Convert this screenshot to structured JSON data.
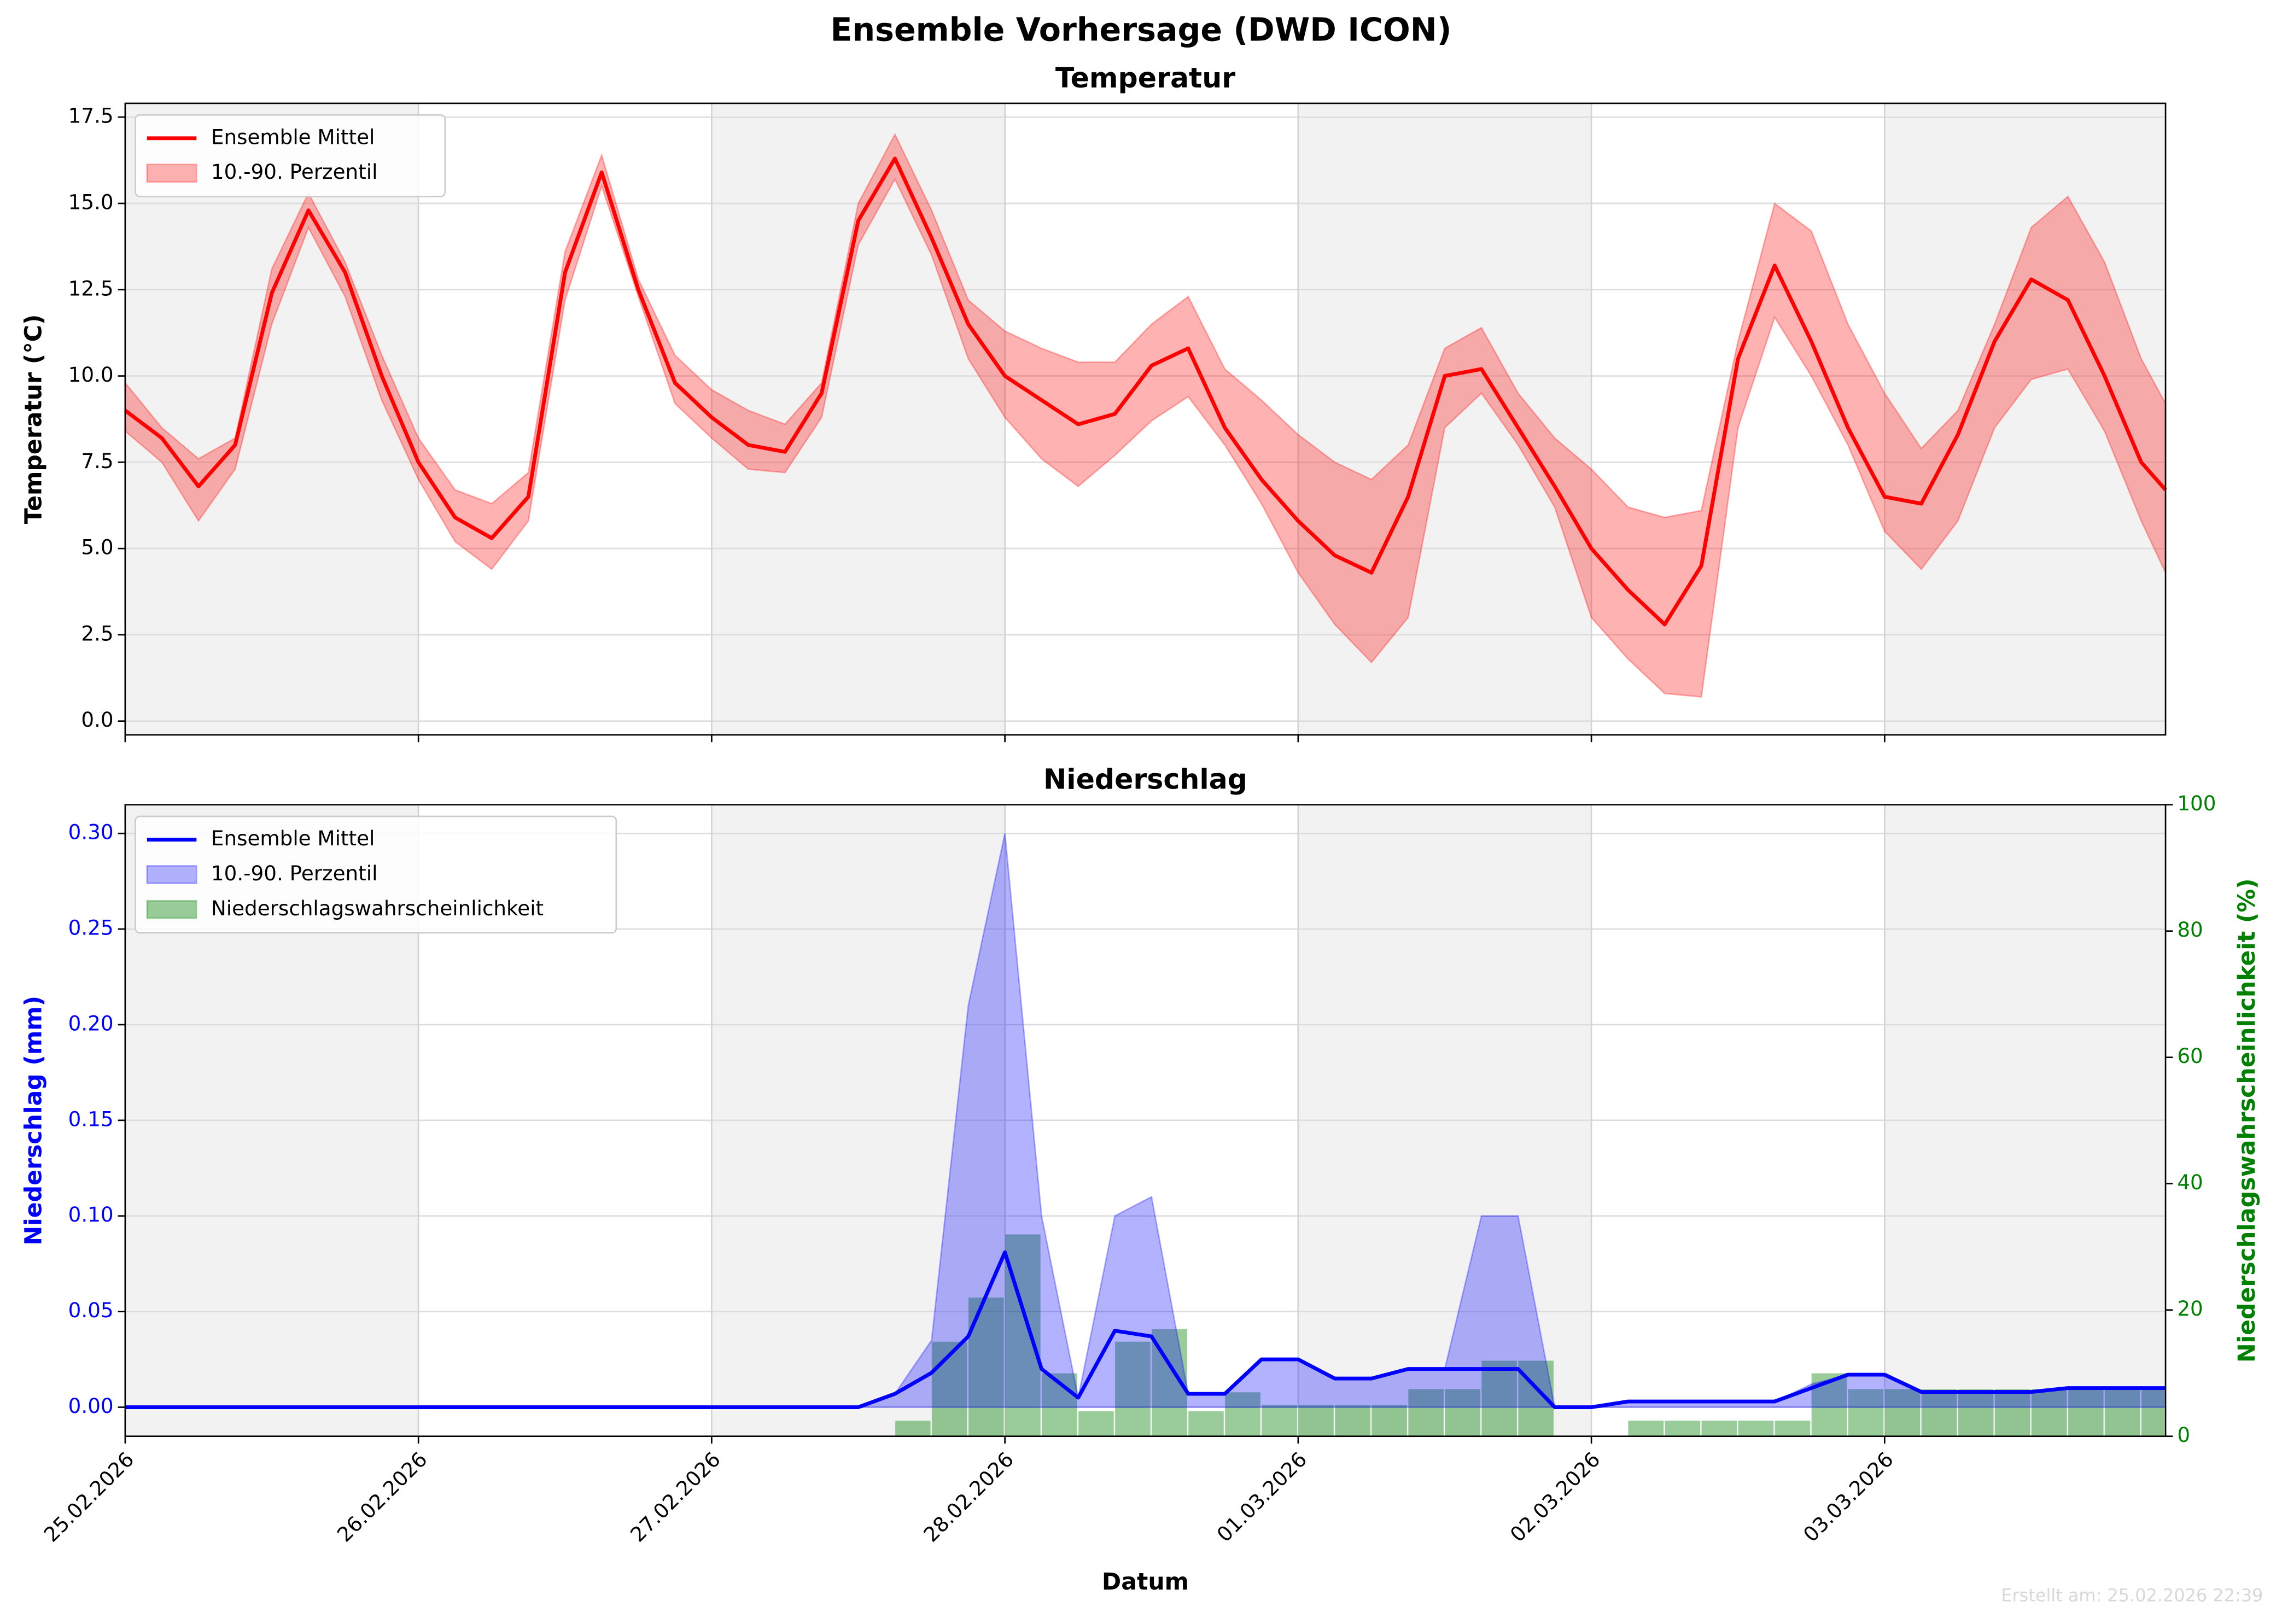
{
  "title": "Ensemble Vorhersage (DWD ICON)",
  "footer": "Erstellt am: 25.02.2026 22:39",
  "chart_data": [
    {
      "type": "line",
      "title": "Temperatur",
      "ylabel": "Temperatur (°C)",
      "x": [
        0,
        0.125,
        0.25,
        0.375,
        0.5,
        0.625,
        0.75,
        0.875,
        1,
        1.125,
        1.25,
        1.375,
        1.5,
        1.625,
        1.75,
        1.875,
        2,
        2.125,
        2.25,
        2.375,
        2.5,
        2.625,
        2.75,
        2.875,
        3,
        3.125,
        3.25,
        3.375,
        3.5,
        3.625,
        3.75,
        3.875,
        4,
        4.125,
        4.25,
        4.375,
        4.5,
        4.625,
        4.75,
        4.875,
        5,
        5.125,
        5.25,
        5.375,
        5.5,
        5.625,
        5.75,
        5.875,
        6,
        6.125,
        6.25,
        6.375,
        6.5,
        6.625,
        6.75,
        6.875,
        6.958
      ],
      "xlim": [
        0,
        6.958
      ],
      "xticks": [
        0,
        1,
        2,
        3,
        4,
        5,
        6
      ],
      "xticklabels": false,
      "ylim": [
        -0.4,
        17.9
      ],
      "yticks": [
        {
          "value": 0,
          "label": "0.0"
        },
        2.5,
        {
          "value": 5,
          "label": "5.0"
        },
        7.5,
        {
          "value": 10,
          "label": "10.0"
        },
        12.5,
        {
          "value": 15,
          "label": "15.0"
        },
        17.5
      ],
      "grid": true,
      "legend": "upper left",
      "series": [
        {
          "name": "Ensemble Mittel",
          "style": "line",
          "color": "#ff0000",
          "values": [
            9.0,
            8.2,
            6.8,
            8.0,
            12.4,
            14.8,
            13.0,
            10.0,
            7.5,
            5.9,
            5.3,
            6.5,
            13.0,
            15.9,
            12.5,
            9.8,
            8.8,
            8.0,
            7.8,
            9.5,
            14.5,
            16.3,
            14.0,
            11.5,
            10.0,
            9.3,
            8.6,
            8.9,
            10.3,
            10.8,
            8.5,
            7.0,
            5.8,
            4.8,
            4.3,
            6.5,
            10.0,
            10.2,
            8.5,
            6.8,
            5.0,
            3.8,
            2.8,
            4.5,
            10.5,
            13.2,
            11.0,
            8.5,
            6.5,
            6.3,
            8.3,
            11.0,
            12.8,
            12.2,
            10.0,
            7.5,
            6.7
          ]
        },
        {
          "name": "10.-90. Perzentil",
          "style": "band",
          "color": "#ff0000",
          "lower": [
            8.4,
            7.5,
            5.8,
            7.3,
            11.5,
            14.3,
            12.3,
            9.3,
            7.0,
            5.2,
            4.4,
            5.8,
            12.2,
            15.5,
            12.3,
            9.2,
            8.2,
            7.3,
            7.2,
            8.8,
            13.8,
            15.7,
            13.5,
            10.5,
            8.8,
            7.6,
            6.8,
            7.7,
            8.7,
            9.4,
            8.0,
            6.3,
            4.3,
            2.8,
            1.7,
            3.0,
            8.5,
            9.5,
            8.0,
            6.2,
            3.0,
            1.8,
            0.8,
            0.7,
            8.5,
            11.7,
            10.0,
            8.0,
            5.5,
            4.4,
            5.8,
            8.5,
            9.9,
            10.2,
            8.4,
            5.8,
            4.3
          ],
          "upper": [
            9.8,
            8.5,
            7.6,
            8.2,
            13.1,
            15.3,
            13.3,
            10.6,
            8.2,
            6.7,
            6.3,
            7.2,
            13.6,
            16.4,
            12.8,
            10.6,
            9.6,
            9.0,
            8.6,
            9.8,
            15.0,
            17.0,
            14.8,
            12.2,
            11.3,
            10.8,
            10.4,
            10.4,
            11.5,
            12.3,
            10.2,
            9.3,
            8.3,
            7.5,
            7.0,
            8.0,
            10.8,
            11.4,
            9.5,
            8.2,
            7.3,
            6.2,
            5.9,
            6.1,
            11.0,
            15.0,
            14.2,
            11.5,
            9.5,
            7.9,
            9.0,
            11.5,
            14.3,
            15.2,
            13.3,
            10.5,
            9.2
          ]
        }
      ]
    },
    {
      "type": "line",
      "title": "Niederschlag",
      "xlabel": "Datum",
      "ylabel": "Niederschlag (mm)",
      "y2label": "Niederschlagswahrscheinlichkeit (%)",
      "x": [
        0,
        0.125,
        0.25,
        0.375,
        0.5,
        0.625,
        0.75,
        0.875,
        1,
        1.125,
        1.25,
        1.375,
        1.5,
        1.625,
        1.75,
        1.875,
        2,
        2.125,
        2.25,
        2.375,
        2.5,
        2.625,
        2.75,
        2.875,
        3,
        3.125,
        3.25,
        3.375,
        3.5,
        3.625,
        3.75,
        3.875,
        4,
        4.125,
        4.25,
        4.375,
        4.5,
        4.625,
        4.75,
        4.875,
        5,
        5.125,
        5.25,
        5.375,
        5.5,
        5.625,
        5.75,
        5.875,
        6,
        6.125,
        6.25,
        6.375,
        6.5,
        6.625,
        6.75,
        6.875,
        6.958
      ],
      "xlim": [
        0,
        6.958
      ],
      "xticks": [
        {
          "value": 0,
          "label": "25.02.2026"
        },
        {
          "value": 1,
          "label": "26.02.2026"
        },
        {
          "value": 2,
          "label": "27.02.2026"
        },
        {
          "value": 3,
          "label": "28.02.2026"
        },
        {
          "value": 4,
          "label": "01.03.2026"
        },
        {
          "value": 5,
          "label": "02.03.2026"
        },
        {
          "value": 6,
          "label": "03.03.2026"
        }
      ],
      "ylim": [
        -0.0152,
        0.315
      ],
      "yticks": [
        {
          "value": 0,
          "label": "0.00"
        },
        {
          "value": 0.05,
          "label": "0.05"
        },
        {
          "value": 0.1,
          "label": "0.10"
        },
        {
          "value": 0.15,
          "label": "0.15"
        },
        {
          "value": 0.2,
          "label": "0.20"
        },
        {
          "value": 0.25,
          "label": "0.25"
        },
        {
          "value": 0.3,
          "label": "0.30"
        }
      ],
      "y2lim": [
        0,
        100
      ],
      "y2ticks": [
        0,
        20,
        40,
        60,
        80,
        100
      ],
      "grid": true,
      "legend": "upper left",
      "series": [
        {
          "name": "Ensemble Mittel",
          "style": "line",
          "color": "#0000ff",
          "values": [
            0,
            0,
            0,
            0,
            0,
            0,
            0,
            0,
            0,
            0,
            0,
            0,
            0,
            0,
            0,
            0,
            0,
            0,
            0,
            0,
            0,
            0.007,
            0.018,
            0.037,
            0.081,
            0.02,
            0.005,
            0.04,
            0.037,
            0.007,
            0.007,
            0.025,
            0.025,
            0.015,
            0.015,
            0.02,
            0.02,
            0.02,
            0.02,
            0,
            0,
            0.003,
            0.003,
            0.003,
            0.003,
            0.003,
            0.01,
            0.017,
            0.017,
            0.008,
            0.008,
            0.008,
            0.008,
            0.01,
            0.01,
            0.01,
            0.01
          ]
        },
        {
          "name": "10.-90. Perzentil",
          "style": "band",
          "color": "#0000ff",
          "lower": [
            0,
            0,
            0,
            0,
            0,
            0,
            0,
            0,
            0,
            0,
            0,
            0,
            0,
            0,
            0,
            0,
            0,
            0,
            0,
            0,
            0,
            0,
            0,
            0,
            0,
            0,
            0,
            0,
            0,
            0,
            0,
            0,
            0,
            0,
            0,
            0,
            0,
            0,
            0,
            0,
            0,
            0,
            0,
            0,
            0,
            0,
            0,
            0,
            0,
            0,
            0,
            0,
            0,
            0,
            0,
            0,
            0
          ],
          "upper": [
            0,
            0,
            0,
            0,
            0,
            0,
            0,
            0,
            0,
            0,
            0,
            0,
            0,
            0,
            0,
            0,
            0,
            0,
            0,
            0,
            0,
            0.007,
            0.035,
            0.21,
            0.3,
            0.1,
            0.005,
            0.1,
            0.11,
            0.007,
            0.007,
            0.025,
            0.025,
            0.015,
            0.015,
            0.02,
            0.02,
            0.1,
            0.1,
            0,
            0,
            0.003,
            0.003,
            0.003,
            0.003,
            0.003,
            0.012,
            0.017,
            0.017,
            0.008,
            0.008,
            0.008,
            0.008,
            0.01,
            0.01,
            0.01,
            0.01
          ]
        },
        {
          "name": "Niederschlagswahrscheinlichkeit",
          "style": "bar",
          "axis": "y2",
          "color": "#008000",
          "values": [
            0,
            0,
            0,
            0,
            0,
            0,
            0,
            0,
            0,
            0,
            0,
            0,
            0,
            0,
            0,
            0,
            0,
            0,
            0,
            0,
            0,
            2.5,
            15,
            22,
            32,
            10,
            4,
            15,
            17,
            4,
            7,
            5,
            5,
            5,
            5,
            7.5,
            7.5,
            12,
            12,
            0,
            0,
            2.5,
            2.5,
            2.5,
            2.5,
            2.5,
            10,
            7.5,
            7.5,
            7.5,
            7.5,
            7.5,
            7.5,
            7.5,
            7.5,
            7.5,
            7.5
          ]
        }
      ]
    }
  ]
}
